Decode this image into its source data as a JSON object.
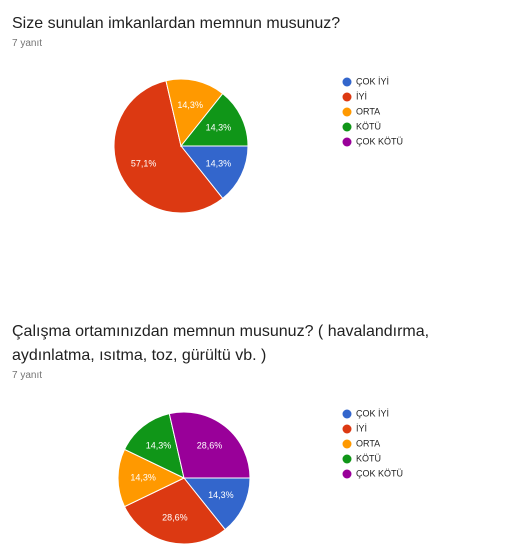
{
  "chart_data": [
    {
      "type": "pie",
      "title": "Size sunulan imkanlardan memnun musunuz?",
      "subtitle": "7 yanıt",
      "categories": [
        "ÇOK İYİ",
        "İYİ",
        "ORTA",
        "KÖTÜ",
        "ÇOK KÖTÜ"
      ],
      "values": [
        14.3,
        57.1,
        14.3,
        14.3,
        0
      ],
      "value_labels": [
        "14,3%",
        "57,1%",
        "14,3%",
        "14,3%",
        null
      ],
      "colors": [
        "#3366cc",
        "#dc3912",
        "#ff9900",
        "#109618",
        "#990099"
      ]
    },
    {
      "type": "pie",
      "title": "Çalışma ortamınızdan memnun musunuz? ( havalandırma, aydınlatma, ısıtma, toz, gürültü vb. )",
      "subtitle": "7 yanıt",
      "categories": [
        "ÇOK İYİ",
        "İYİ",
        "ORTA",
        "KÖTÜ",
        "ÇOK KÖTÜ"
      ],
      "values": [
        14.3,
        28.6,
        14.3,
        14.3,
        28.6
      ],
      "value_labels": [
        "14,3%",
        "28,6%",
        "14,3%",
        "14,3%",
        "28,6%"
      ],
      "colors": [
        "#3366cc",
        "#dc3912",
        "#ff9900",
        "#109618",
        "#990099"
      ]
    }
  ]
}
